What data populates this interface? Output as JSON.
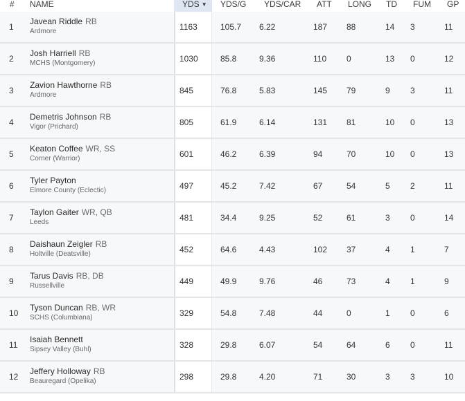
{
  "headers": {
    "rank": "#",
    "name": "NAME",
    "yds": "YDS",
    "yds_g": "YDS/G",
    "yds_car": "YDS/CAR",
    "att": "ATT",
    "long": "LONG",
    "td": "TD",
    "fum": "FUM",
    "gp": "GP",
    "sort_indicator": "▼"
  },
  "rows": [
    {
      "rank": "1",
      "name": "Javean Riddle",
      "pos": "RB",
      "school": "Ardmore",
      "yds": "1163",
      "yds_g": "105.7",
      "yds_car": "6.22",
      "att": "187",
      "long": "88",
      "td": "14",
      "fum": "3",
      "gp": "11"
    },
    {
      "rank": "2",
      "name": "Josh Harriell",
      "pos": "RB",
      "school": "MCHS (Montgomery)",
      "yds": "1030",
      "yds_g": "85.8",
      "yds_car": "9.36",
      "att": "110",
      "long": "0",
      "td": "13",
      "fum": "0",
      "gp": "12"
    },
    {
      "rank": "3",
      "name": "Zavion Hawthorne",
      "pos": "RB",
      "school": "Ardmore",
      "yds": "845",
      "yds_g": "76.8",
      "yds_car": "5.83",
      "att": "145",
      "long": "79",
      "td": "9",
      "fum": "3",
      "gp": "11"
    },
    {
      "rank": "4",
      "name": "Demetris Johnson",
      "pos": "RB",
      "school": "Vigor (Prichard)",
      "yds": "805",
      "yds_g": "61.9",
      "yds_car": "6.14",
      "att": "131",
      "long": "81",
      "td": "10",
      "fum": "0",
      "gp": "13"
    },
    {
      "rank": "5",
      "name": "Keaton Coffee",
      "pos": "WR, SS",
      "school": "Corner (Warrior)",
      "yds": "601",
      "yds_g": "46.2",
      "yds_car": "6.39",
      "att": "94",
      "long": "70",
      "td": "10",
      "fum": "0",
      "gp": "13"
    },
    {
      "rank": "6",
      "name": "Tyler Payton",
      "pos": "",
      "school": "Elmore County (Eclectic)",
      "yds": "497",
      "yds_g": "45.2",
      "yds_car": "7.42",
      "att": "67",
      "long": "54",
      "td": "5",
      "fum": "2",
      "gp": "11"
    },
    {
      "rank": "7",
      "name": "Taylon Gaiter",
      "pos": "WR, QB",
      "school": "Leeds",
      "yds": "481",
      "yds_g": "34.4",
      "yds_car": "9.25",
      "att": "52",
      "long": "61",
      "td": "3",
      "fum": "0",
      "gp": "14"
    },
    {
      "rank": "8",
      "name": "Daishaun Zeigler",
      "pos": "RB",
      "school": "Holtville (Deatsville)",
      "yds": "452",
      "yds_g": "64.6",
      "yds_car": "4.43",
      "att": "102",
      "long": "37",
      "td": "4",
      "fum": "1",
      "gp": "7"
    },
    {
      "rank": "9",
      "name": "Tarus Davis",
      "pos": "RB, DB",
      "school": "Russellville",
      "yds": "449",
      "yds_g": "49.9",
      "yds_car": "9.76",
      "att": "46",
      "long": "73",
      "td": "4",
      "fum": "1",
      "gp": "9"
    },
    {
      "rank": "10",
      "name": "Tyson Duncan",
      "pos": "RB, WR",
      "school": "SCHS (Columbiana)",
      "yds": "329",
      "yds_g": "54.8",
      "yds_car": "7.48",
      "att": "44",
      "long": "0",
      "td": "1",
      "fum": "0",
      "gp": "6"
    },
    {
      "rank": "11",
      "name": "Isaiah Bennett",
      "pos": "",
      "school": "Sipsey Valley (Buhl)",
      "yds": "328",
      "yds_g": "29.8",
      "yds_car": "6.07",
      "att": "54",
      "long": "64",
      "td": "6",
      "fum": "0",
      "gp": "11"
    },
    {
      "rank": "12",
      "name": "Jeffery Holloway",
      "pos": "RB",
      "school": "Beauregard (Opelika)",
      "yds": "298",
      "yds_g": "29.8",
      "yds_car": "4.20",
      "att": "71",
      "long": "30",
      "td": "3",
      "fum": "3",
      "gp": "10"
    }
  ]
}
